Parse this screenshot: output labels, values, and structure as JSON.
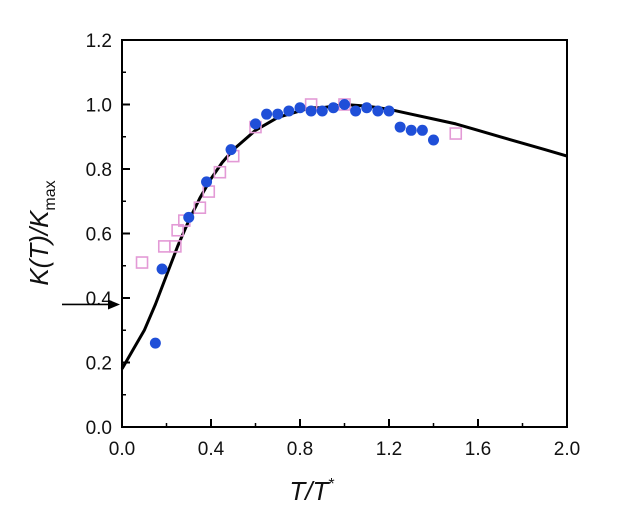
{
  "chart_data": {
    "type": "scatter",
    "xlabel": {
      "main": "T/T",
      "sup": "*"
    },
    "ylabel": {
      "main": "K(T)/K",
      "sub": "max"
    },
    "xlim": [
      0,
      2.0
    ],
    "ylim": [
      0,
      1.2
    ],
    "xticks": [
      "0.0",
      "0.4",
      "0.8",
      "1.2",
      "1.6",
      "2.0"
    ],
    "yticks": [
      "0.0",
      "0.2",
      "0.4",
      "0.6",
      "0.8",
      "1.0",
      "1.2"
    ],
    "grid": false,
    "arrow_y": 0.38,
    "colors": {
      "filled_circles": "#1f4fd8",
      "open_squares": "#e39ad6",
      "curve": "#000000"
    },
    "series": [
      {
        "marker": "filled-circle",
        "x": [
          0.15,
          0.18,
          0.3,
          0.38,
          0.49,
          0.6,
          0.65,
          0.7,
          0.75,
          0.8,
          0.85,
          0.9,
          0.95,
          1.0,
          1.05,
          1.1,
          1.15,
          1.2,
          1.25,
          1.3,
          1.35,
          1.4
        ],
        "y": [
          0.26,
          0.49,
          0.65,
          0.76,
          0.86,
          0.94,
          0.97,
          0.97,
          0.98,
          0.99,
          0.98,
          0.98,
          0.99,
          1.0,
          0.98,
          0.99,
          0.98,
          0.98,
          0.93,
          0.92,
          0.92,
          0.89
        ]
      },
      {
        "marker": "open-square",
        "x": [
          0.09,
          0.19,
          0.24,
          0.25,
          0.28,
          0.35,
          0.39,
          0.44,
          0.5,
          0.6,
          0.85,
          1.0,
          1.5
        ],
        "y": [
          0.51,
          0.56,
          0.56,
          0.61,
          0.64,
          0.68,
          0.73,
          0.79,
          0.84,
          0.93,
          1.0,
          1.0,
          0.91
        ]
      },
      {
        "marker": "line",
        "x": [
          0.0,
          0.05,
          0.1,
          0.15,
          0.2,
          0.25,
          0.3,
          0.35,
          0.4,
          0.45,
          0.5,
          0.55,
          0.6,
          0.65,
          0.7,
          0.75,
          0.8,
          0.85,
          0.9,
          0.95,
          1.0,
          1.1,
          1.2,
          1.3,
          1.4,
          1.5,
          1.6,
          1.7,
          1.8,
          1.9,
          2.0
        ],
        "y": [
          0.18,
          0.24,
          0.3,
          0.38,
          0.47,
          0.56,
          0.64,
          0.71,
          0.77,
          0.82,
          0.86,
          0.89,
          0.92,
          0.94,
          0.96,
          0.97,
          0.98,
          0.99,
          0.99,
          0.995,
          1.0,
          0.995,
          0.985,
          0.97,
          0.955,
          0.94,
          0.92,
          0.9,
          0.88,
          0.86,
          0.84
        ]
      }
    ]
  }
}
